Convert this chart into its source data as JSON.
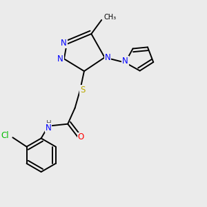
{
  "bg_color": "#ebebeb",
  "atom_colors": {
    "N": "#0000ff",
    "S": "#bbaa00",
    "O": "#ff0000",
    "Cl": "#00bb00",
    "C": "#000000",
    "H": "#555555"
  },
  "bond_color": "#000000",
  "bond_width": 1.4,
  "font_size_atom": 8.5
}
